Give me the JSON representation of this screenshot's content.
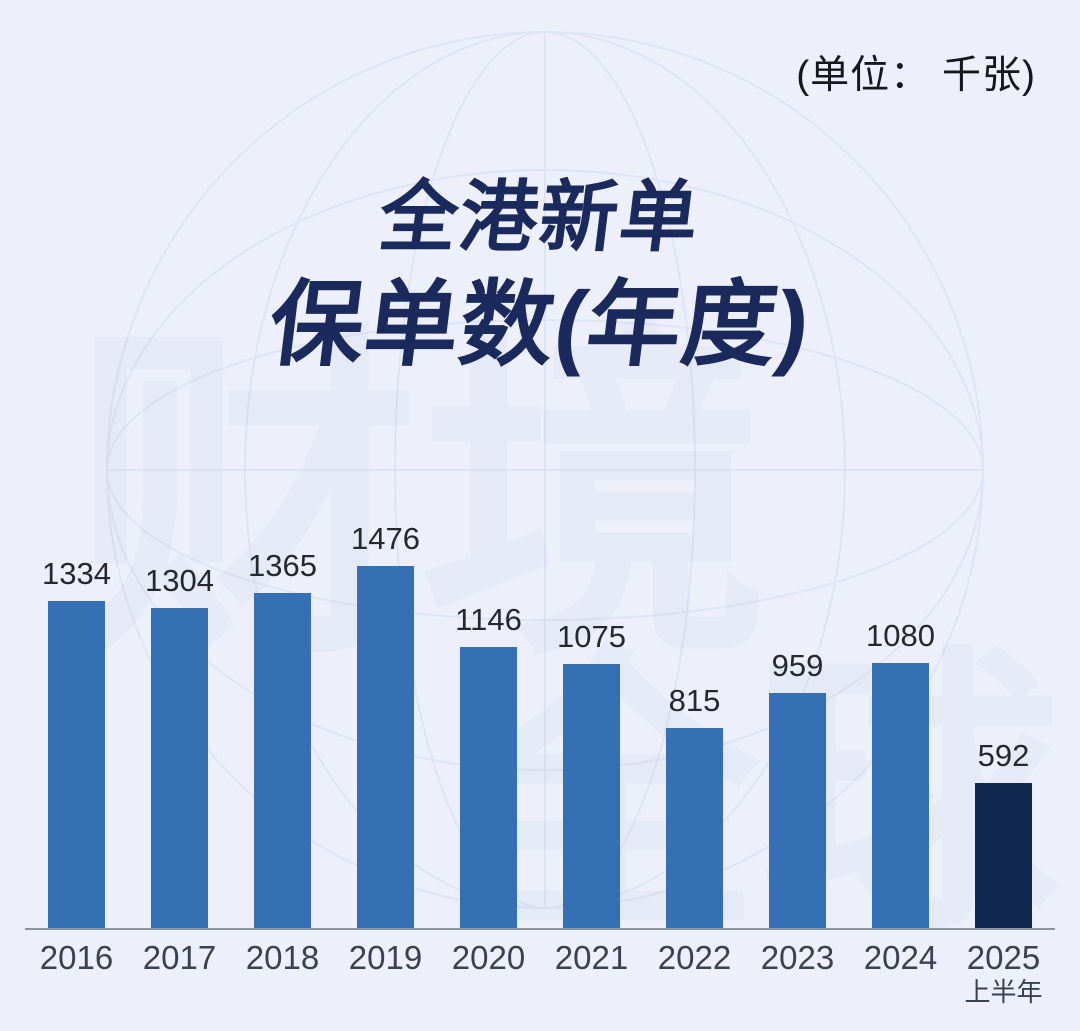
{
  "unit_label": "(单位： 千张)",
  "title": {
    "line1": "全港新单",
    "line2": "保单数(年度)"
  },
  "watermark": {
    "text1": "财境",
    "text2": "全球"
  },
  "colors": {
    "background": "#EDF0FA",
    "bar": "#3570B4",
    "bar_highlight": "#102750",
    "title": "#1B2A5C",
    "value_label": "#26282E",
    "axis": "#8F939B",
    "tick_label": "#3A4150"
  },
  "chart_data": {
    "type": "bar",
    "title": "全港新单保单数(年度)",
    "unit": "千张",
    "categories": [
      "2016",
      "2017",
      "2018",
      "2019",
      "2020",
      "2021",
      "2022",
      "2023",
      "2024",
      "2025"
    ],
    "values": [
      1334,
      1304,
      1365,
      1476,
      1146,
      1075,
      815,
      959,
      1080,
      592
    ],
    "last_category_sublabel": "上半年",
    "highlight_index": 9,
    "ylim": [
      0,
      1476
    ],
    "grid": false,
    "legend": false,
    "data_labels": true,
    "xlabel": "",
    "ylabel": ""
  }
}
